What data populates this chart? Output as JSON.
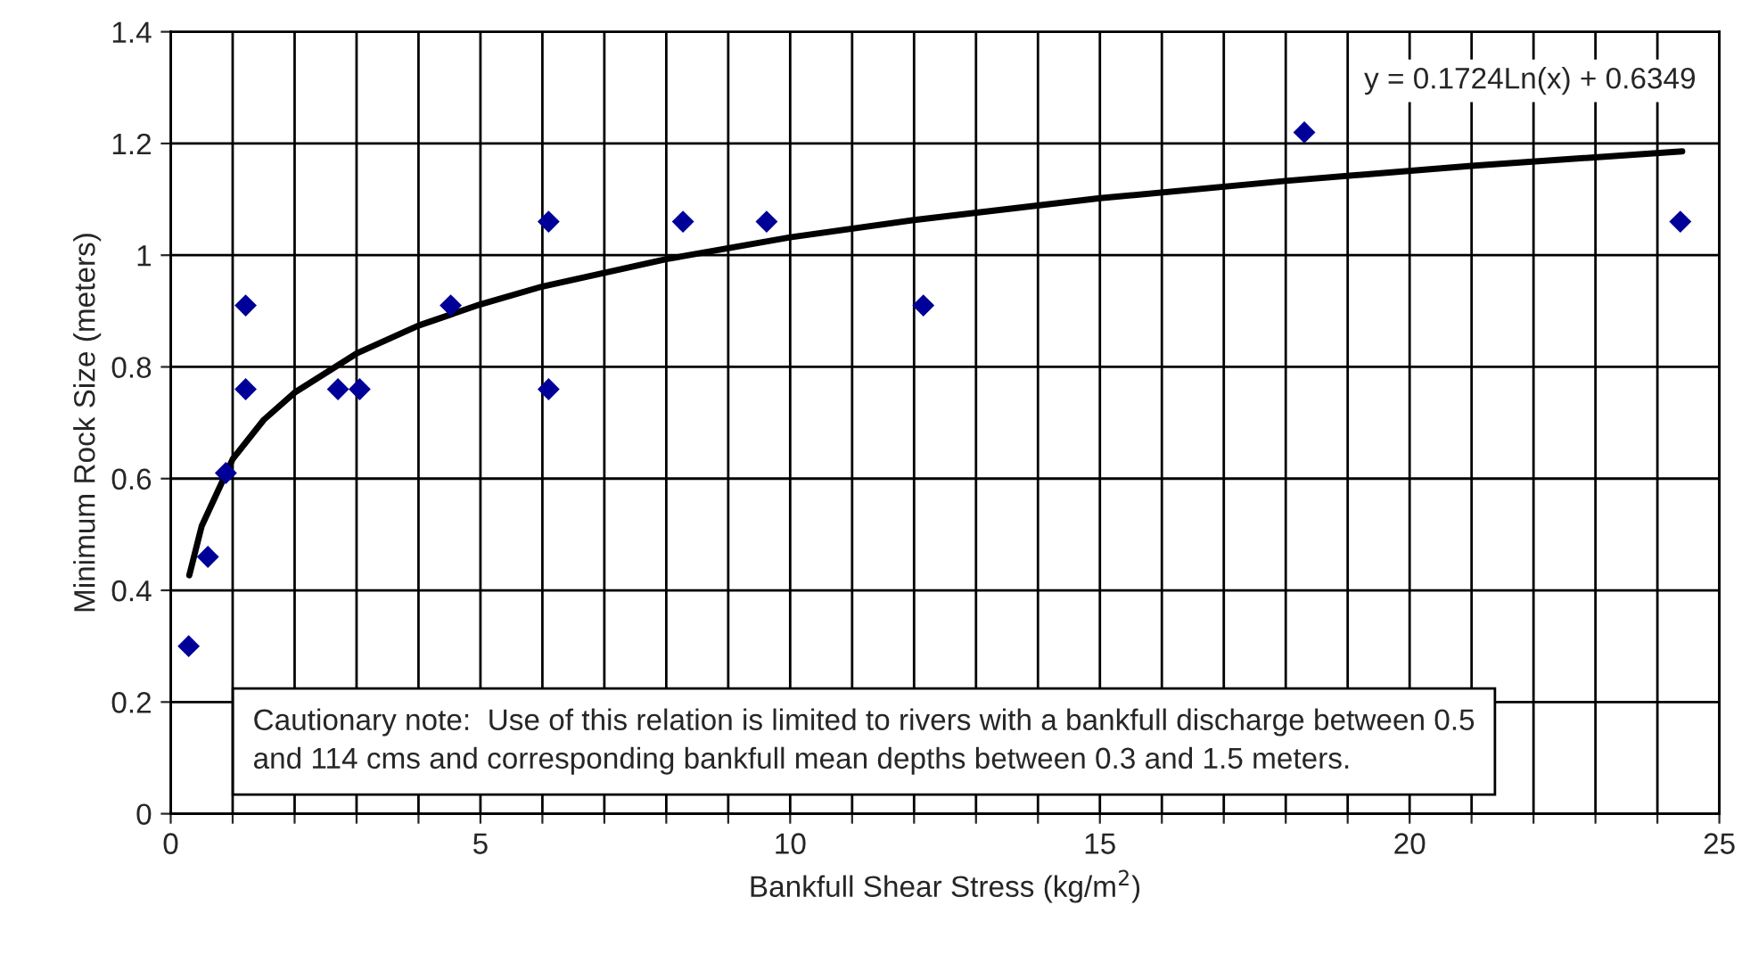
{
  "chart_data": {
    "type": "scatter",
    "xlabel": "Bankfull Shear Stress (kg/m$^{2}$)",
    "ylabel": "Minimum Rock Size (meters)",
    "xlim": [
      0,
      25
    ],
    "ylim": [
      0,
      1.4
    ],
    "xticks": [
      0,
      {
        "value": 1,
        "label": null
      },
      {
        "value": 2,
        "label": null
      },
      {
        "value": 3,
        "label": null
      },
      {
        "value": 4,
        "label": null
      },
      5,
      {
        "value": 6,
        "label": null
      },
      {
        "value": 7,
        "label": null
      },
      {
        "value": 8,
        "label": null
      },
      {
        "value": 9,
        "label": null
      },
      10,
      {
        "value": 11,
        "label": null
      },
      {
        "value": 12,
        "label": null
      },
      {
        "value": 13,
        "label": null
      },
      {
        "value": 14,
        "label": null
      },
      15,
      {
        "value": 16,
        "label": null
      },
      {
        "value": 17,
        "label": null
      },
      {
        "value": 18,
        "label": null
      },
      {
        "value": 19,
        "label": null
      },
      20,
      {
        "value": 21,
        "label": null
      },
      {
        "value": 22,
        "label": null
      },
      {
        "value": 23,
        "label": null
      },
      {
        "value": 24,
        "label": null
      },
      25
    ],
    "yticks": [
      0,
      0.2,
      0.4,
      0.6,
      0.8,
      1,
      1.2,
      1.4
    ],
    "grid": true,
    "series": [
      {
        "marker": "diamond",
        "color": "#000099",
        "x": [
          0.29,
          0.6,
          0.89,
          1.21,
          1.21,
          2.7,
          3.05,
          4.52,
          6.1,
          6.1,
          8.27,
          9.62,
          12.15,
          18.3,
          24.37
        ],
        "values": [
          0.3,
          0.46,
          0.61,
          0.91,
          0.76,
          0.76,
          0.76,
          0.91,
          1.06,
          0.76,
          1.06,
          1.06,
          0.91,
          1.22,
          1.06
        ]
      },
      {
        "type": "line",
        "color": "#000000",
        "x": [
          0.3,
          0.5,
          1,
          1.5,
          2,
          3,
          4,
          5,
          6,
          8,
          10,
          12,
          15,
          18,
          21,
          24.4
        ],
        "values": [
          0.427,
          0.515,
          0.635,
          0.705,
          0.754,
          0.824,
          0.874,
          0.912,
          0.944,
          0.993,
          1.032,
          1.063,
          1.102,
          1.133,
          1.16,
          1.186
        ]
      }
    ],
    "annotations": [
      "y = 0.1724Ln(x) + 0.6349",
      "Cautionary note:  Use of this relation is limited to rivers with a bankfull discharge between 0.5 and 114 cms and corresponding bankfull mean depths between 0.3 and 1.5 meters."
    ]
  }
}
